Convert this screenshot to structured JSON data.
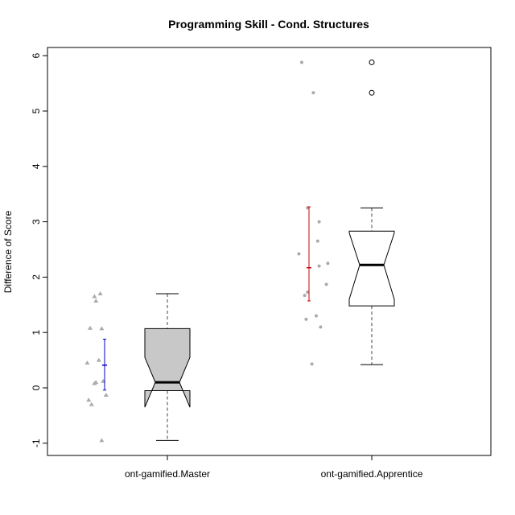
{
  "chart_data": {
    "type": "box",
    "title": "Programming Skill - Cond. Structures",
    "xlabel": "",
    "ylabel": "Difference of Score",
    "ylim": [
      -1.2,
      6.15
    ],
    "yticks": [
      "-1",
      "0",
      "1",
      "2",
      "3",
      "4",
      "5",
      "6"
    ],
    "categories": [
      "ont-gamified.Master",
      "ont-gamified.Apprentice"
    ],
    "grid": false,
    "groups": [
      {
        "name": "ont-gamified.Master",
        "box_fill": "#c8c8c8",
        "min": -0.95,
        "q1": -0.05,
        "median": 0.1,
        "q3": 1.07,
        "max": 1.7,
        "notch": [
          -0.35,
          0.55
        ],
        "outliers": [],
        "mean": 0.41,
        "ci": [
          -0.04,
          0.88
        ],
        "ci_color": "#0000cc",
        "points": [
          {
            "x": -0.35,
            "y": 1.65
          },
          {
            "x": -0.3,
            "y": 1.57
          },
          {
            "x": -0.15,
            "y": 1.7
          },
          {
            "x": -0.5,
            "y": 1.08
          },
          {
            "x": -0.1,
            "y": 1.07
          },
          {
            "x": -0.6,
            "y": 0.45
          },
          {
            "x": -0.2,
            "y": 0.5
          },
          {
            "x": -0.05,
            "y": 0.12
          },
          {
            "x": -0.3,
            "y": 0.1
          },
          {
            "x": -0.35,
            "y": 0.08
          },
          {
            "x": 0.05,
            "y": -0.13
          },
          {
            "x": -0.55,
            "y": -0.22
          },
          {
            "x": -0.45,
            "y": -0.3
          },
          {
            "x": -0.1,
            "y": -0.95
          }
        ]
      },
      {
        "name": "ont-gamified.Apprentice",
        "box_fill": "#ffffff",
        "min": 0.42,
        "q1": 1.48,
        "median": 2.22,
        "q3": 2.83,
        "max": 3.25,
        "notch": [
          1.6,
          2.8
        ],
        "outliers": [
          5.33,
          5.88
        ],
        "mean": 2.17,
        "ci": [
          1.57,
          3.27
        ],
        "ci_color": "#cc0000",
        "points": [
          {
            "x": -0.25,
            "y": 5.88
          },
          {
            "x": 0.15,
            "y": 5.33
          },
          {
            "x": -0.05,
            "y": 3.25
          },
          {
            "x": 0.35,
            "y": 3.0
          },
          {
            "x": 0.3,
            "y": 2.65
          },
          {
            "x": -0.35,
            "y": 2.42
          },
          {
            "x": 0.65,
            "y": 2.25
          },
          {
            "x": 0.35,
            "y": 2.2
          },
          {
            "x": 0.6,
            "y": 1.87
          },
          {
            "x": -0.05,
            "y": 1.73
          },
          {
            "x": -0.15,
            "y": 1.67
          },
          {
            "x": 0.25,
            "y": 1.3
          },
          {
            "x": -0.1,
            "y": 1.24
          },
          {
            "x": 0.4,
            "y": 1.1
          },
          {
            "x": 0.1,
            "y": 0.43
          }
        ]
      }
    ]
  }
}
